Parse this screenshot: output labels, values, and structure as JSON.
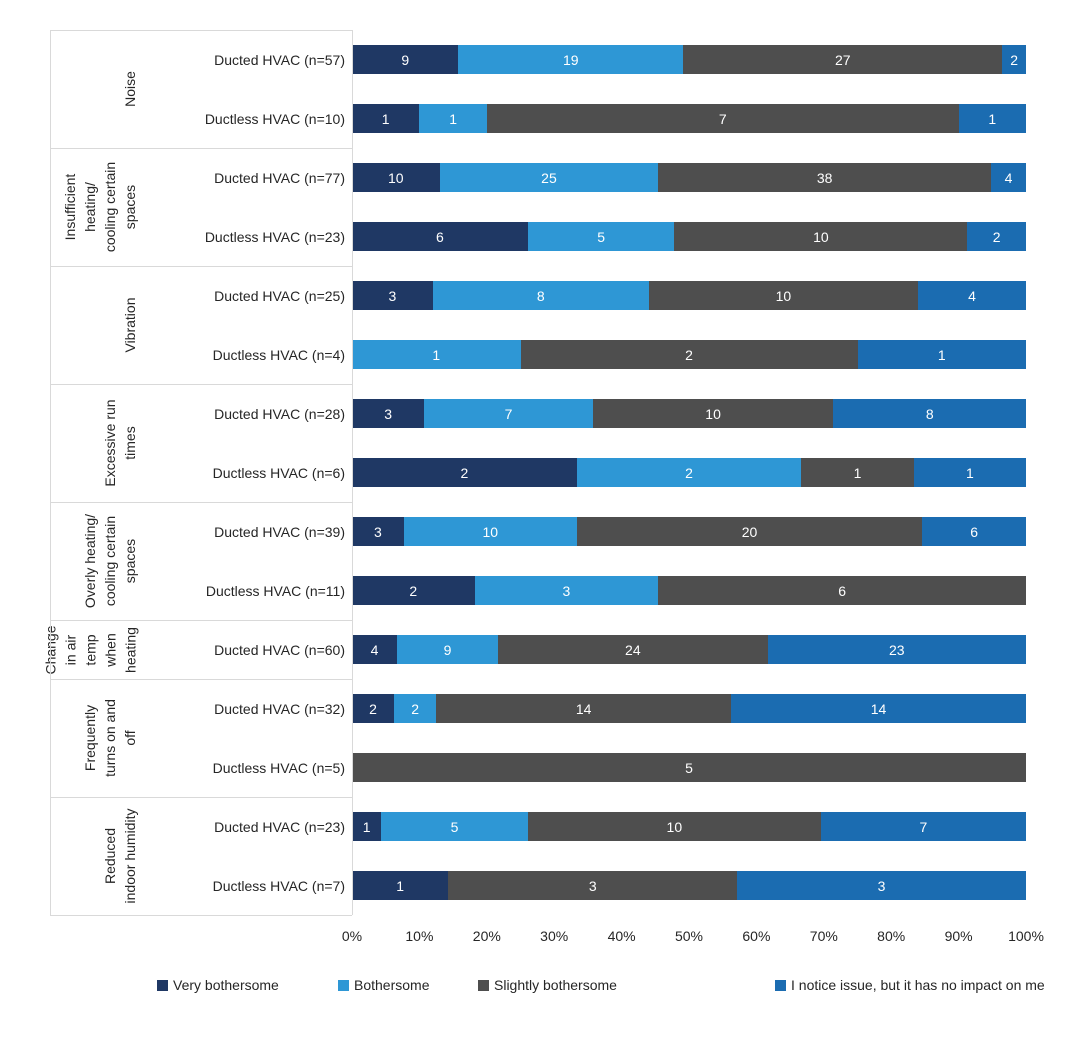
{
  "chart_data": {
    "type": "bar",
    "orientation": "horizontal-stacked",
    "title": "",
    "xlabel": "",
    "ylabel": "",
    "xlim": [
      0,
      100
    ],
    "x_ticks": [
      "0%",
      "10%",
      "20%",
      "30%",
      "40%",
      "50%",
      "60%",
      "70%",
      "80%",
      "90%",
      "100%"
    ],
    "grid": false,
    "legend_position": "bottom",
    "series_names": [
      "Very bothersome",
      "Bothersome",
      "Slightly bothersome",
      "I notice issue, but it has no impact on me"
    ],
    "series_colors": [
      "#1F3864",
      "#2E97D5",
      "#4E4E4E",
      "#1B6CB1"
    ],
    "groups": [
      {
        "label": "Noise",
        "label_lines": [
          "Noise"
        ],
        "rows": [
          {
            "label": "Ducted HVAC (n=57)",
            "n": 57,
            "values": [
              9,
              19,
              27,
              2
            ]
          },
          {
            "label": "Ductless HVAC (n=10)",
            "n": 10,
            "values": [
              1,
              1,
              7,
              1
            ]
          }
        ]
      },
      {
        "label": "Insufficient heating/ cooling certain spaces",
        "label_lines": [
          "Insufficient",
          "heating/",
          "cooling certain",
          "spaces"
        ],
        "rows": [
          {
            "label": "Ducted HVAC (n=77)",
            "n": 77,
            "values": [
              10,
              25,
              38,
              4
            ]
          },
          {
            "label": "Ductless HVAC (n=23)",
            "n": 23,
            "values": [
              6,
              5,
              10,
              2
            ]
          }
        ]
      },
      {
        "label": "Vibration",
        "label_lines": [
          "Vibration"
        ],
        "rows": [
          {
            "label": "Ducted HVAC (n=25)",
            "n": 25,
            "values": [
              3,
              8,
              10,
              4
            ]
          },
          {
            "label": "Ductless HVAC (n=4)",
            "n": 4,
            "values": [
              0,
              1,
              2,
              1
            ]
          }
        ]
      },
      {
        "label": "Excessive run times",
        "label_lines": [
          "Excessive run",
          "times"
        ],
        "rows": [
          {
            "label": "Ducted HVAC (n=28)",
            "n": 28,
            "values": [
              3,
              7,
              10,
              8
            ]
          },
          {
            "label": "Ductless HVAC (n=6)",
            "n": 6,
            "values": [
              2,
              2,
              1,
              1
            ]
          }
        ]
      },
      {
        "label": "Overly heating/ cooling certain spaces",
        "label_lines": [
          "Overly heating/",
          "cooling certain",
          "spaces"
        ],
        "rows": [
          {
            "label": "Ducted HVAC (n=39)",
            "n": 39,
            "values": [
              3,
              10,
              20,
              6
            ]
          },
          {
            "label": "Ductless HVAC (n=11)",
            "n": 11,
            "values": [
              2,
              3,
              6,
              0
            ]
          }
        ]
      },
      {
        "label": "Change in air temp when heating",
        "label_lines": [
          "Change",
          "in air",
          "temp",
          "when",
          "heating"
        ],
        "rows": [
          {
            "label": "Ducted HVAC (n=60)",
            "n": 60,
            "values": [
              4,
              9,
              24,
              23
            ]
          }
        ]
      },
      {
        "label": "Frequently turns on and off",
        "label_lines": [
          "Frequently",
          "turns on and",
          "off"
        ],
        "rows": [
          {
            "label": "Ducted HVAC (n=32)",
            "n": 32,
            "values": [
              2,
              2,
              14,
              14
            ]
          },
          {
            "label": "Ductless HVAC (n=5)",
            "n": 5,
            "values": [
              0,
              0,
              5,
              0
            ]
          }
        ]
      },
      {
        "label": "Reduced indoor humidity",
        "label_lines": [
          "Reduced",
          "indoor humidity"
        ],
        "rows": [
          {
            "label": "Ducted HVAC (n=23)",
            "n": 23,
            "values": [
              1,
              5,
              10,
              7
            ]
          },
          {
            "label": "Ductless HVAC (n=7)",
            "n": 7,
            "values": [
              1,
              0,
              3,
              3
            ]
          }
        ]
      }
    ],
    "legend": [
      {
        "label": "Very bothersome",
        "color": "#1F3864"
      },
      {
        "label": "Bothersome",
        "color": "#2E97D5"
      },
      {
        "label": "Slightly bothersome",
        "color": "#4E4E4E"
      },
      {
        "label": "I notice issue, but it has no impact on me",
        "color": "#1B6CB1"
      }
    ],
    "colors": {
      "very_bothersome": "#1F3864",
      "bothersome": "#2E97D5",
      "slightly_bothersome": "#4E4E4E",
      "no_impact": "#1B6CB1",
      "axis_line": "#D9D9D9",
      "text": "#262626",
      "bar_label": "#FFFFFF"
    }
  }
}
